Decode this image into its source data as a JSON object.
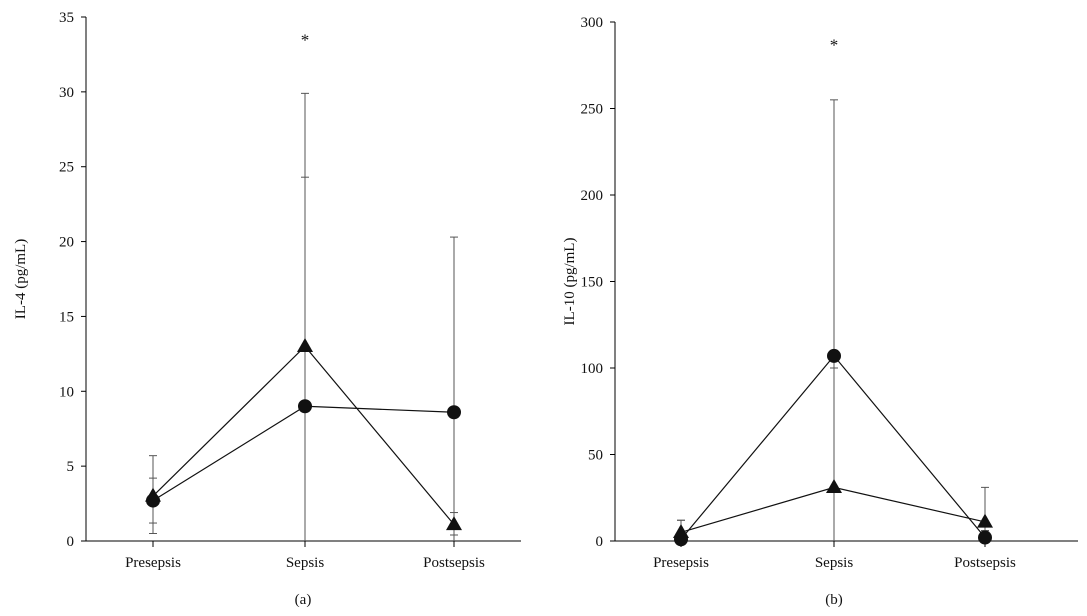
{
  "colors": {
    "ink": "#111111",
    "axis": "#000000",
    "error_bar": "#555555",
    "background": "#ffffff"
  },
  "chart_data": [
    {
      "type": "line",
      "panel_label": "(a)",
      "xlabel": "",
      "ylabel": "IL-4 (pg/mL)",
      "categories": [
        "Presepsis",
        "Sepsis",
        "Postsepsis"
      ],
      "ylim": [
        0,
        35
      ],
      "yticks": [
        0,
        5,
        10,
        15,
        20,
        25,
        30,
        35
      ],
      "grid": false,
      "annotations": [
        {
          "text": "*",
          "category": "Sepsis",
          "y": 33.5
        }
      ],
      "series": [
        {
          "marker": "triangle",
          "values": [
            3.0,
            13.0,
            1.1
          ],
          "error_low": [
            1.2,
            0.0,
            0.4
          ],
          "error_high": [
            5.7,
            29.9,
            1.9
          ]
        },
        {
          "marker": "circle",
          "values": [
            2.7,
            9.0,
            8.6
          ],
          "error_low": [
            0.5,
            0.0,
            0.0
          ],
          "error_high": [
            4.2,
            24.3,
            20.3
          ]
        }
      ]
    },
    {
      "type": "line",
      "panel_label": "(b)",
      "xlabel": "",
      "ylabel": "IL-10 (pg/mL)",
      "categories": [
        "Presepsis",
        "Sepsis",
        "Postsepsis"
      ],
      "ylim": [
        0,
        300
      ],
      "yticks": [
        0,
        50,
        100,
        150,
        200,
        250,
        300
      ],
      "grid": false,
      "annotations": [
        {
          "text": "*",
          "category": "Sepsis",
          "y": 287
        }
      ],
      "series": [
        {
          "marker": "circle",
          "values": [
            1,
            107,
            2
          ],
          "error_low": [
            0,
            0,
            0
          ],
          "error_high": [
            12,
            255,
            6
          ]
        },
        {
          "marker": "triangle",
          "values": [
            5,
            31,
            11
          ],
          "error_low": [
            0,
            0,
            6
          ],
          "error_high": [
            12,
            100,
            31
          ]
        }
      ]
    }
  ]
}
